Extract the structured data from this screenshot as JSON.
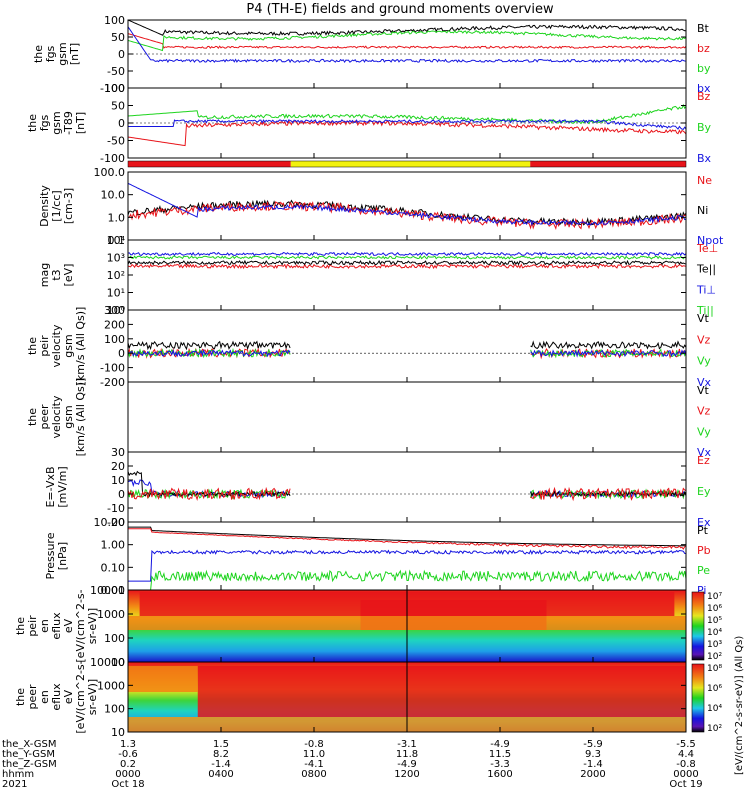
{
  "title": "P4 (TH-E) fields and ground moments overview",
  "chart_data": {
    "type": "line",
    "panels": [
      {
        "id": "fgs_gsm",
        "ylabel": [
          "the",
          "fgs",
          "gsm",
          "[nT]"
        ],
        "ylim": [
          -100,
          100
        ],
        "yticks": [
          "100",
          "50",
          "0",
          "-50",
          "-100"
        ],
        "legend": [
          {
            "name": "Bt",
            "color": "#000000"
          },
          {
            "name": "bz",
            "color": "#e8141a"
          },
          {
            "name": "by",
            "color": "#1ed41e"
          },
          {
            "name": "bx",
            "color": "#1414e0"
          }
        ]
      },
      {
        "id": "fgs_gsm_t89",
        "ylabel": [
          "the",
          "fgs",
          "gsm",
          "-T89",
          "[nT]"
        ],
        "ylim": [
          -100,
          100
        ],
        "yticks": [
          "100",
          "50",
          "0",
          "-50",
          "-100"
        ],
        "legend": [
          {
            "name": "Bz",
            "color": "#e8141a"
          },
          {
            "name": "By",
            "color": "#1ed41e"
          },
          {
            "name": "Bx",
            "color": "#1414e0"
          }
        ]
      },
      {
        "id": "density",
        "ylabel": [
          "Density",
          "[1/cc]",
          "[cm-3]"
        ],
        "log": true,
        "ylim": [
          0.1,
          100
        ],
        "yticks": [
          "100.0",
          "10.0",
          "1.0",
          "0.1"
        ],
        "legend": [
          {
            "name": "Ne",
            "color": "#e8141a"
          },
          {
            "name": "Ni",
            "color": "#000000"
          },
          {
            "name": "Npot",
            "color": "#1414e0"
          }
        ]
      },
      {
        "id": "temperature",
        "ylabel": [
          "mag",
          "t3",
          "[eV]"
        ],
        "log": true,
        "ylim": [
          1,
          10000
        ],
        "yticks": [
          "10⁴",
          "10³",
          "10²",
          "10¹",
          "10⁰"
        ],
        "legend": [
          {
            "name": "Te⊥",
            "color": "#e8141a"
          },
          {
            "name": "Te||",
            "color": "#000000"
          },
          {
            "name": "Ti⊥",
            "color": "#1414e0"
          },
          {
            "name": "Ti||",
            "color": "#1ed41e"
          }
        ]
      },
      {
        "id": "peir_velocity",
        "ylabel": [
          "the",
          "peir",
          "velocity",
          "gsm",
          "[km/s (All Qs)]"
        ],
        "ylim": [
          -200,
          300
        ],
        "yticks": [
          "300",
          "200",
          "100",
          "0",
          "-100",
          "-200"
        ],
        "legend": [
          {
            "name": "Vt",
            "color": "#000000"
          },
          {
            "name": "Vz",
            "color": "#e8141a"
          },
          {
            "name": "Vy",
            "color": "#1ed41e"
          },
          {
            "name": "Vx",
            "color": "#1414e0"
          }
        ]
      },
      {
        "id": "peer_velocity",
        "ylabel": [
          "the",
          "peer",
          "velocity",
          "gsm",
          "[km/s (All Qs)]"
        ],
        "ylim": [
          -200,
          300
        ],
        "yticks": [],
        "legend": [
          {
            "name": "Vt",
            "color": "#000000"
          },
          {
            "name": "Vz",
            "color": "#e8141a"
          },
          {
            "name": "Vy",
            "color": "#1ed41e"
          },
          {
            "name": "Vx",
            "color": "#1414e0"
          }
        ]
      },
      {
        "id": "efield",
        "ylabel": [
          "E=-VxB",
          "[mV/m]"
        ],
        "ylim": [
          -20,
          30
        ],
        "yticks": [
          "30",
          "20",
          "10",
          "0",
          "-10",
          "-20"
        ],
        "legend": [
          {
            "name": "Ez",
            "color": "#e8141a"
          },
          {
            "name": "Ey",
            "color": "#1ed41e"
          },
          {
            "name": "Ex",
            "color": "#1414e0"
          }
        ]
      },
      {
        "id": "pressure",
        "ylabel": [
          "Pressure",
          "[nPa]"
        ],
        "log": true,
        "ylim": [
          0.003,
          30
        ],
        "yticks": [
          "10.00",
          "1.00",
          "0.10",
          "0.01"
        ],
        "legend": [
          {
            "name": "Pt",
            "color": "#000000"
          },
          {
            "name": "Pb",
            "color": "#e8141a"
          },
          {
            "name": "Pe",
            "color": "#1ed41e"
          },
          {
            "name": "Pi",
            "color": "#1414e0"
          }
        ]
      },
      {
        "id": "peir_spec",
        "ylabel": [
          "the",
          "peir",
          "en",
          "eflux",
          "eV",
          "[eV/(cm^2-s-",
          "sr-eV)]"
        ],
        "log": true,
        "ylim": [
          5,
          30000
        ],
        "yticks": [
          "10000",
          "1000",
          "100",
          "10"
        ]
      },
      {
        "id": "peer_spec",
        "ylabel": [
          "the",
          "peer",
          "en",
          "eflux",
          "eV",
          "[eV/(cm^2-s-",
          "sr-eV)]"
        ],
        "log": true,
        "ylim": [
          5,
          30000
        ],
        "yticks": [
          "10000",
          "1000",
          "100",
          "10"
        ]
      }
    ],
    "colorbar_1": {
      "ticks": [
        "10⁷",
        "10⁶",
        "10⁵",
        "10⁴",
        "10³",
        "10²"
      ]
    },
    "colorbar_2": {
      "ticks": [
        "10⁸",
        "10⁶",
        "10⁴",
        "10²"
      ]
    },
    "colorbar_label": "[eV/(cm^2-s-sr-eV)] (All Qs)",
    "x_rows": {
      "labels": [
        "the_X-GSM",
        "the_Y-GSM",
        "the_Z-GSM",
        "hhmm",
        "2021"
      ],
      "values": [
        [
          "1.3",
          "1.5",
          "-0.8",
          "-3.1",
          "-4.9",
          "-5.9",
          "-5.5"
        ],
        [
          "-0.6",
          "8.2",
          "11.0",
          "11.8",
          "11.5",
          "9.3",
          "4.4"
        ],
        [
          "0.2",
          "-1.4",
          "-4.1",
          "-4.9",
          "-3.3",
          "-1.4",
          "-0.8"
        ],
        [
          "0000",
          "0400",
          "0800",
          "1200",
          "1600",
          "2000",
          "0000"
        ],
        [
          "Oct 18",
          "",
          "",
          "",
          "",
          "",
          "Oct 19"
        ]
      ]
    },
    "mode_bar": [
      {
        "start_hour": 0,
        "end_hour": 7,
        "color": "#e8141a"
      },
      {
        "start_hour": 7,
        "end_hour": 17.3,
        "color": "#f2f20f"
      },
      {
        "start_hour": 17.3,
        "end_hour": 24,
        "color": "#e8141a"
      }
    ],
    "data_gaps": {
      "peir_velocity": [
        [
          7,
          17.3
        ]
      ],
      "efield": [
        [
          7,
          17.3
        ]
      ]
    }
  }
}
